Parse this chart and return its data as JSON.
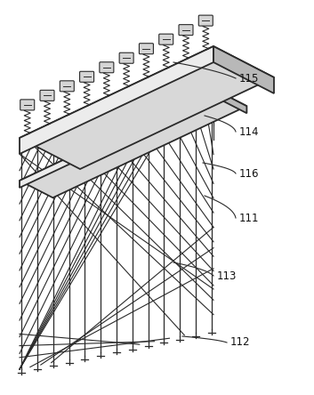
{
  "background_color": "#ffffff",
  "line_color": "#2a2a2a",
  "fill_top": "#d8d8d8",
  "fill_front": "#ececec",
  "fill_side": "#b8b8b8",
  "figsize": [
    3.53,
    4.44
  ],
  "dpi": 100,
  "n_rods": 13,
  "n_springs": 10,
  "n_diag": 10
}
